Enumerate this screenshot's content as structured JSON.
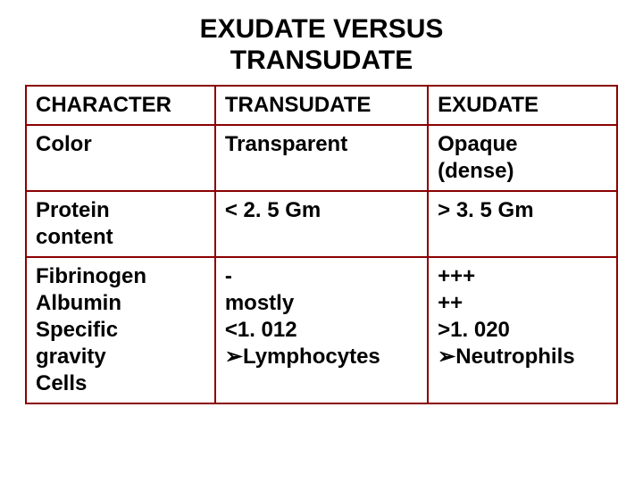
{
  "title": "EXUDATE VERSUS\nTRANSUDATE",
  "colors": {
    "border": "#8b0000",
    "text": "#000000",
    "background": "#ffffff"
  },
  "typography": {
    "title_fontsize": 30,
    "cell_fontsize": 24,
    "font_family": "Arial",
    "font_weight": "bold"
  },
  "table": {
    "type": "table",
    "columns": [
      "CHARACTER",
      "TRANSUDATE",
      "EXUDATE"
    ],
    "column_widths_pct": [
      32,
      36,
      32
    ],
    "rows": [
      {
        "character": "Color",
        "transudate": "Transparent",
        "exudate": "Opaque\n(dense)"
      },
      {
        "character": "Protein\ncontent",
        "transudate": "< 2. 5 Gm",
        "exudate": "> 3. 5 Gm"
      },
      {
        "character_lines": [
          "Fibrinogen",
          "Albumin",
          "Specific",
          "gravity",
          "Cells"
        ],
        "transudate_lines": [
          "-",
          "mostly",
          "<1. 012",
          "➢Lymphocytes"
        ],
        "exudate_lines": [
          "+++",
          "++",
          ">1. 020",
          "➢Neutrophils"
        ]
      }
    ]
  }
}
